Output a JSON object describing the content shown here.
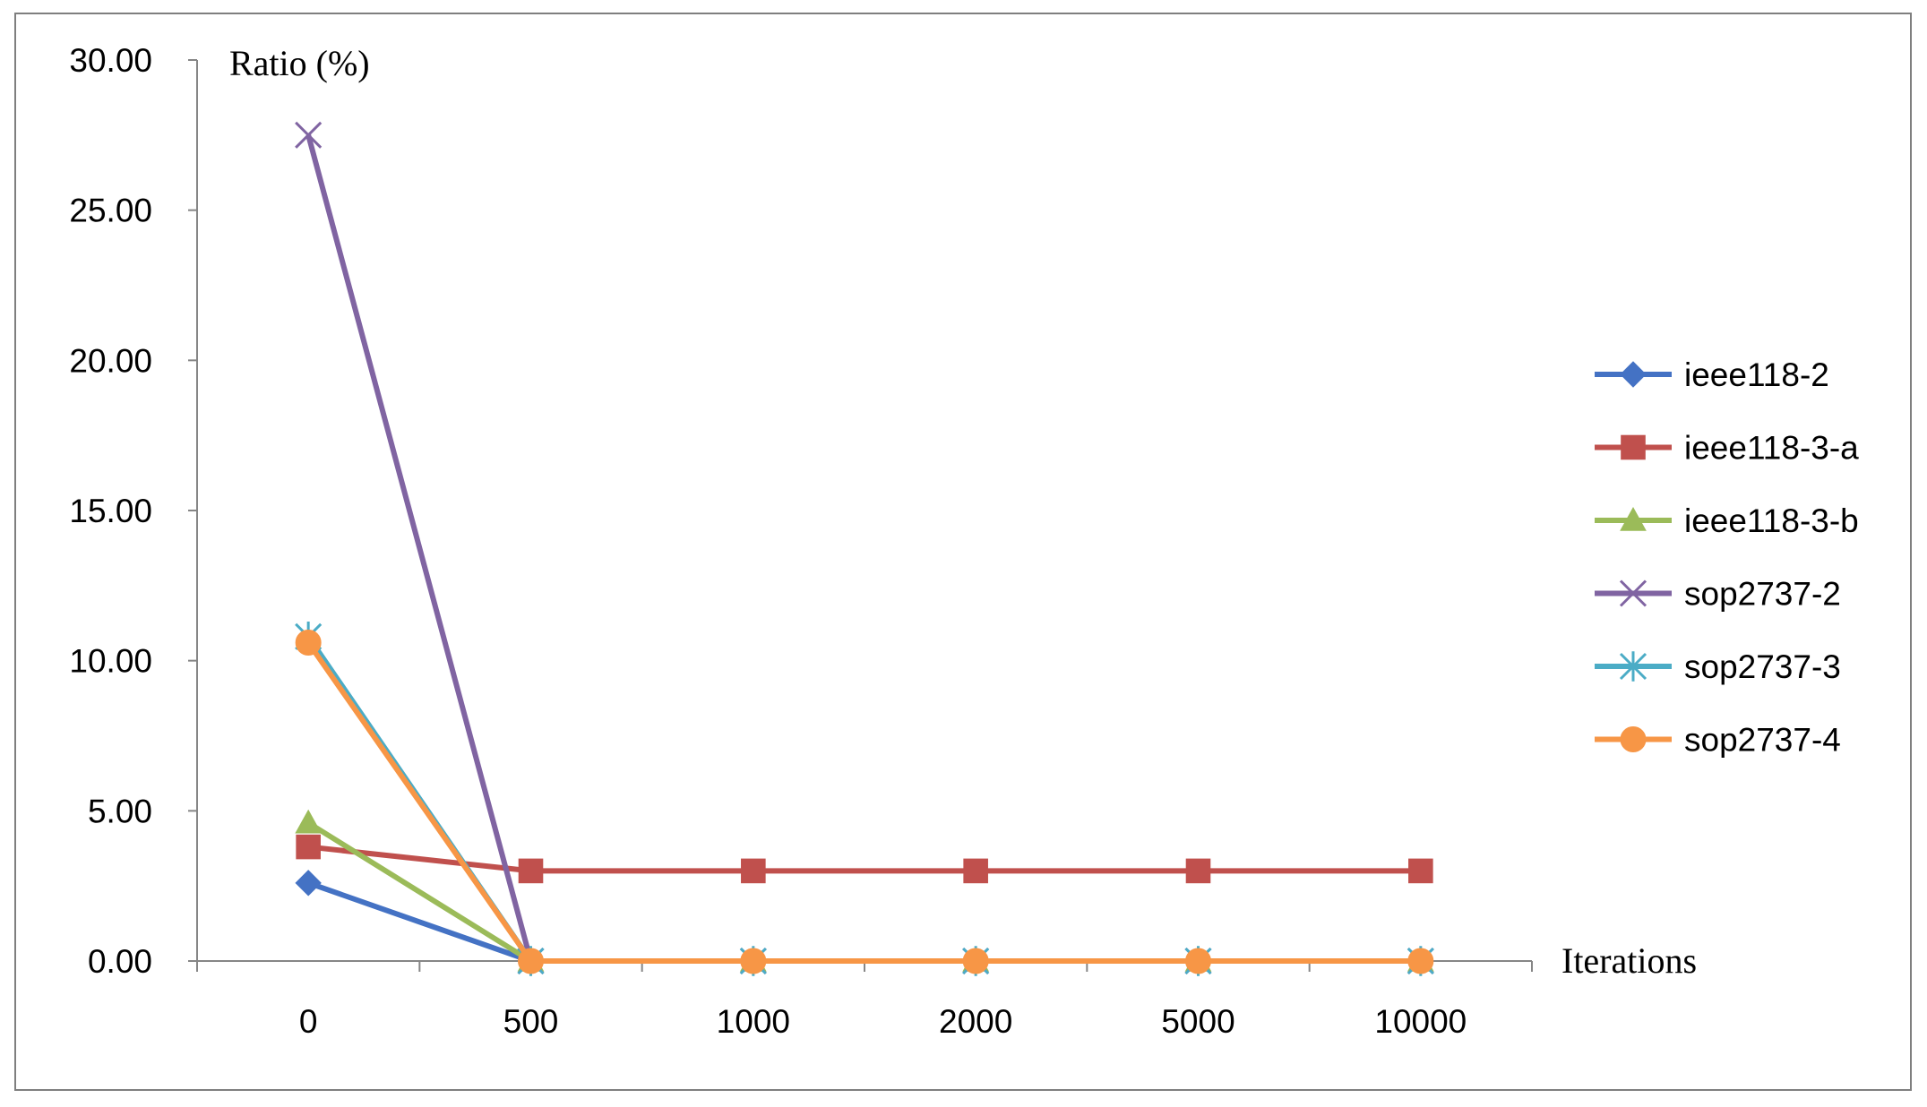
{
  "chart_data": {
    "type": "line",
    "categories": [
      "0",
      "500",
      "1000",
      "2000",
      "5000",
      "10000"
    ],
    "ylabel": "Ratio (%)",
    "xlabel": "Iterations",
    "ylim": [
      0,
      30
    ],
    "yticks": [
      "0.00",
      "5.00",
      "10.00",
      "15.00",
      "20.00",
      "25.00",
      "30.00"
    ],
    "grid": false,
    "legend_position": "right",
    "series": [
      {
        "name": "ieee118-2",
        "values": [
          2.6,
          0,
          0,
          0,
          0,
          0
        ],
        "color": "#4472C4",
        "marker": "diamond"
      },
      {
        "name": "ieee118-3-a",
        "values": [
          3.8,
          3.0,
          3.0,
          3.0,
          3.0,
          3.0
        ],
        "color": "#C0504D",
        "marker": "square"
      },
      {
        "name": "ieee118-3-b",
        "values": [
          4.6,
          0,
          0,
          0,
          0,
          0
        ],
        "color": "#9BBB59",
        "marker": "triangle"
      },
      {
        "name": "sop2737-2",
        "values": [
          27.5,
          0,
          0,
          0,
          0,
          0
        ],
        "color": "#8064A2",
        "marker": "x"
      },
      {
        "name": "sop2737-3",
        "values": [
          10.8,
          0,
          0,
          0,
          0,
          0
        ],
        "color": "#4BACC6",
        "marker": "star"
      },
      {
        "name": "sop2737-4",
        "values": [
          10.6,
          0,
          0,
          0,
          0,
          0
        ],
        "color": "#F79646",
        "marker": "circle"
      }
    ]
  }
}
